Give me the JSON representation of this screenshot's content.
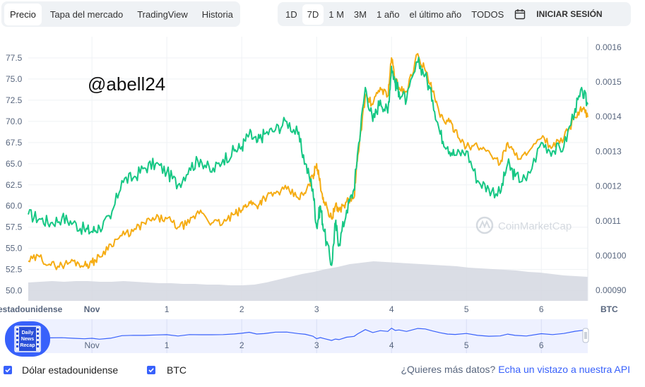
{
  "tabs": [
    "Precio",
    "Tapa del mercado",
    "TradingView",
    "Historia"
  ],
  "ranges": [
    "1D",
    "7D",
    "1 M",
    "3M",
    "1 año",
    "el último año",
    "TODOS"
  ],
  "login": "INICIAR SESIÓN",
  "overlay_text": "@abell24",
  "watermark": "CoinMarketCap",
  "badge": {
    "line1": "Daily",
    "line2": "News",
    "line3": "Recap"
  },
  "legend": {
    "usd_label": "Dólar estadounidense",
    "btc_label": "BTC",
    "question": "¿Quieres más datos?",
    "link": "Echa un vistazo a nuestra API"
  },
  "colors": {
    "usd": "#16c784",
    "btc": "#f5ac13",
    "volume": "#d3d7e0",
    "accent": "#3861fb"
  },
  "chart_data": {
    "type": "line",
    "x_ticks": [
      "Nov",
      "1",
      "2",
      "3",
      "4",
      "5",
      "6"
    ],
    "x_left_label": "estadounidense",
    "y_left_ticks": [
      "50.0",
      "52.5",
      "55.0",
      "57.5",
      "60.0",
      "62.5",
      "65.0",
      "67.5",
      "70.0",
      "72.5",
      "75.0",
      "77.5"
    ],
    "y_right_ticks": [
      "0.00090",
      "0.00100",
      "0.0011",
      "0.0012",
      "0.0013",
      "0.0014",
      "0.0015",
      "0.0016"
    ],
    "y_right_unit": "BTC",
    "ylim_left": [
      48.8,
      80.0
    ],
    "ylim_right": [
      0.00087,
      0.00163
    ],
    "x_range_days": [
      -0.85,
      6.62
    ],
    "series": [
      {
        "color": "green",
        "axis": "left",
        "x": [
          -0.85,
          -0.7,
          -0.55,
          -0.4,
          -0.25,
          -0.1,
          0.0,
          0.1,
          0.25,
          0.4,
          0.55,
          0.7,
          0.85,
          1.0,
          1.15,
          1.3,
          1.45,
          1.6,
          1.75,
          1.9,
          2.0,
          2.1,
          2.2,
          2.3,
          2.45,
          2.6,
          2.75,
          2.85,
          2.95,
          3.0,
          3.05,
          3.1,
          3.2,
          3.25,
          3.3,
          3.4,
          3.5,
          3.55,
          3.65,
          3.75,
          3.85,
          3.95,
          4.0,
          4.05,
          4.1,
          4.2,
          4.35,
          4.45,
          4.55,
          4.65,
          4.75,
          4.85,
          5.0,
          5.15,
          5.3,
          5.45,
          5.55,
          5.65,
          5.8,
          6.0,
          6.15,
          6.3,
          6.45,
          6.55,
          6.62
        ],
        "values": [
          59.0,
          58.5,
          58.0,
          58.6,
          58.0,
          57.2,
          57.0,
          57.5,
          58.5,
          63.0,
          63.3,
          64.5,
          65.0,
          64.0,
          62.5,
          64.5,
          65.5,
          64.0,
          65.5,
          66.5,
          67.0,
          68.5,
          67.5,
          68.5,
          69.0,
          70.0,
          68.5,
          65.0,
          62.0,
          57.5,
          60.0,
          57.0,
          53.0,
          58.0,
          55.5,
          59.5,
          62.0,
          66.5,
          74.0,
          70.0,
          72.5,
          71.0,
          76.5,
          74.5,
          73.5,
          72.5,
          77.0,
          75.5,
          72.5,
          68.5,
          67.0,
          66.0,
          66.5,
          63.0,
          62.0,
          61.5,
          65.0,
          63.5,
          63.0,
          67.5,
          66.5,
          67.0,
          71.5,
          73.5,
          72.0
        ]
      },
      {
        "color": "orange",
        "axis": "left",
        "x": [
          -0.85,
          -0.7,
          -0.55,
          -0.4,
          -0.25,
          -0.1,
          0.0,
          0.1,
          0.25,
          0.4,
          0.55,
          0.7,
          0.85,
          1.0,
          1.15,
          1.3,
          1.45,
          1.6,
          1.75,
          1.9,
          2.0,
          2.1,
          2.2,
          2.3,
          2.45,
          2.6,
          2.75,
          2.85,
          2.95,
          3.0,
          3.05,
          3.1,
          3.2,
          3.25,
          3.3,
          3.4,
          3.5,
          3.55,
          3.65,
          3.75,
          3.85,
          3.95,
          4.0,
          4.05,
          4.1,
          4.2,
          4.35,
          4.45,
          4.55,
          4.65,
          4.75,
          4.85,
          5.0,
          5.15,
          5.3,
          5.45,
          5.55,
          5.65,
          5.8,
          6.0,
          6.15,
          6.3,
          6.45,
          6.55,
          6.62
        ],
        "values": [
          53.5,
          54.0,
          53.0,
          53.0,
          53.5,
          53.0,
          53.3,
          54.0,
          55.5,
          56.5,
          57.0,
          58.0,
          58.5,
          58.5,
          57.5,
          58.0,
          59.5,
          58.0,
          58.0,
          59.0,
          59.5,
          60.5,
          60.0,
          61.0,
          61.5,
          62.0,
          61.0,
          61.5,
          63.5,
          65.0,
          62.5,
          60.5,
          58.5,
          60.0,
          59.5,
          60.5,
          61.0,
          66.0,
          73.0,
          72.0,
          74.0,
          73.0,
          77.5,
          75.0,
          74.0,
          73.5,
          78.0,
          76.0,
          73.5,
          70.5,
          70.0,
          69.0,
          67.0,
          67.0,
          66.5,
          65.0,
          67.5,
          66.0,
          66.0,
          68.0,
          67.0,
          68.0,
          70.5,
          71.5,
          70.5
        ]
      }
    ],
    "volume_note": "shaded volume area at bottom"
  }
}
